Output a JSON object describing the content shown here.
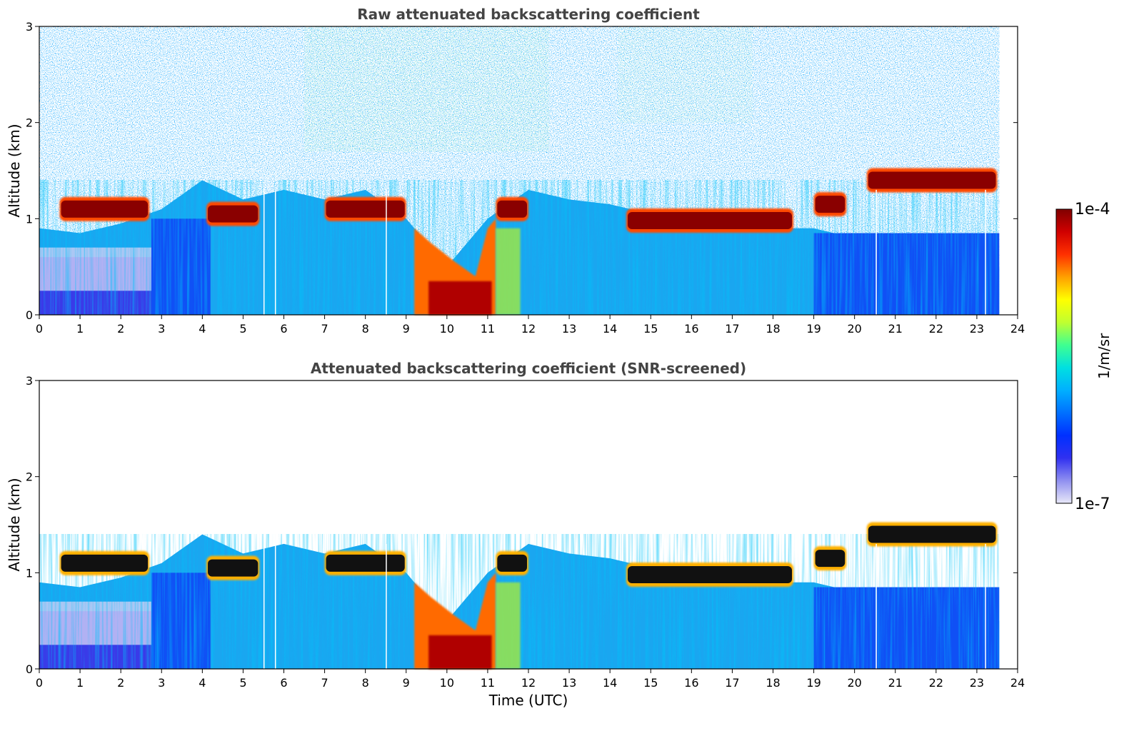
{
  "chart_data": [
    {
      "type": "heatmap",
      "title": "Raw attenuated backscattering coefficient",
      "xlabel": "",
      "ylabel": "Altitude (km)",
      "xlim": [
        0,
        24
      ],
      "ylim": [
        0,
        3
      ],
      "xticks": [
        "0",
        "1",
        "2",
        "3",
        "4",
        "5",
        "6",
        "7",
        "8",
        "9",
        "10",
        "11",
        "12",
        "13",
        "14",
        "15",
        "16",
        "17",
        "18",
        "19",
        "20",
        "21",
        "22",
        "23",
        "24"
      ],
      "yticks": [
        "0",
        "1",
        "2",
        "3"
      ],
      "data_end_time": 23.55,
      "cloud_layers": [
        {
          "t_start": 0.5,
          "t_end": 2.7,
          "altitude_km": 1.1
        },
        {
          "t_start": 4.1,
          "t_end": 5.4,
          "altitude_km": 1.05
        },
        {
          "t_start": 7.0,
          "t_end": 9.0,
          "altitude_km": 1.1
        },
        {
          "t_start": 11.2,
          "t_end": 12.0,
          "altitude_km": 1.1
        },
        {
          "t_start": 14.4,
          "t_end": 18.5,
          "altitude_km": 0.98
        },
        {
          "t_start": 19.0,
          "t_end": 19.8,
          "altitude_km": 1.15
        },
        {
          "t_start": 20.3,
          "t_end": 23.5,
          "altitude_km": 1.4
        }
      ],
      "fog_period": {
        "t_start": 9.2,
        "t_end": 11.2
      }
    },
    {
      "type": "heatmap",
      "title": "Attenuated backscattering coefficient (SNR-screened)",
      "xlabel": "Time (UTC)",
      "ylabel": "Altitude (km)",
      "xlim": [
        0,
        24
      ],
      "ylim": [
        0,
        3
      ],
      "xticks": [
        "0",
        "1",
        "2",
        "3",
        "4",
        "5",
        "6",
        "7",
        "8",
        "9",
        "10",
        "11",
        "12",
        "13",
        "14",
        "15",
        "16",
        "17",
        "18",
        "19",
        "20",
        "21",
        "22",
        "23",
        "24"
      ],
      "yticks": [
        "0",
        "1",
        "2",
        "3"
      ],
      "data_end_time": 23.55
    }
  ],
  "colorbar": {
    "label": "1/m/sr",
    "max_label": "1e-4",
    "min_label": "1e-7",
    "colors": [
      "#e8e8f8",
      "#9090f0",
      "#3030f0",
      "#0030ff",
      "#0070ff",
      "#00b0ff",
      "#00e0e0",
      "#40ff90",
      "#c0ff30",
      "#ffff00",
      "#ffa000",
      "#ff3000",
      "#d00000",
      "#800000"
    ]
  }
}
